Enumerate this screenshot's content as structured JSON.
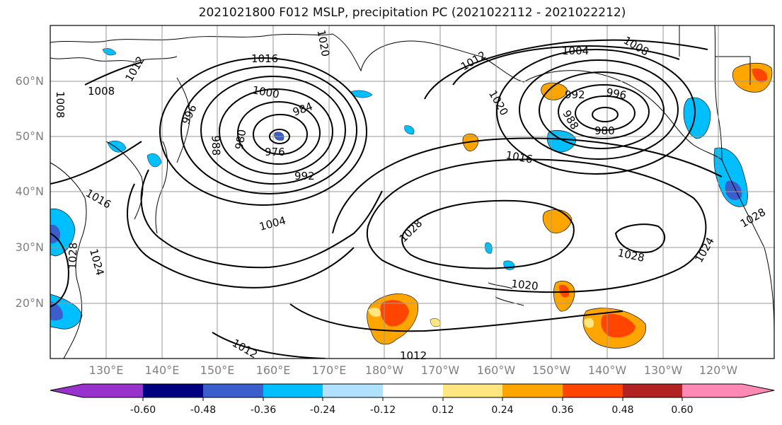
{
  "title": "2021021800 F012 MSLP, precipitation PC (2021022112 - 2021022212)",
  "lat_labels": [
    "60°N",
    "50°N",
    "40°N",
    "30°N",
    "20°N"
  ],
  "lon_labels": [
    "130°E",
    "140°E",
    "150°E",
    "160°E",
    "170°E",
    "180°W",
    "170°W",
    "160°W",
    "150°W",
    "140°W",
    "130°W",
    "120°W"
  ],
  "isobar_labels": [
    "1016",
    "1008",
    "1012",
    "1020",
    "1008",
    "1000",
    "984",
    "996",
    "988",
    "980",
    "976",
    "992",
    "1016",
    "1004",
    "1028",
    "1024",
    "1012",
    "1012",
    "1004",
    "1008",
    "1012",
    "1020",
    "992",
    "996",
    "988",
    "980",
    "1016",
    "1028",
    "1028",
    "1024",
    "1028",
    "1020"
  ],
  "colorbar": {
    "tick_labels": [
      "-0.60",
      "-0.48",
      "-0.36",
      "-0.24",
      "-0.12",
      "0.12",
      "0.24",
      "0.36",
      "0.48",
      "0.60"
    ],
    "colors": [
      "#9932cc",
      "#000080",
      "#3a5fcd",
      "#00bfff",
      "#b0e2ff",
      "#ffffff",
      "#ffe680",
      "#ffa500",
      "#ff4500",
      "#b22222",
      "#ff89b4"
    ]
  }
}
